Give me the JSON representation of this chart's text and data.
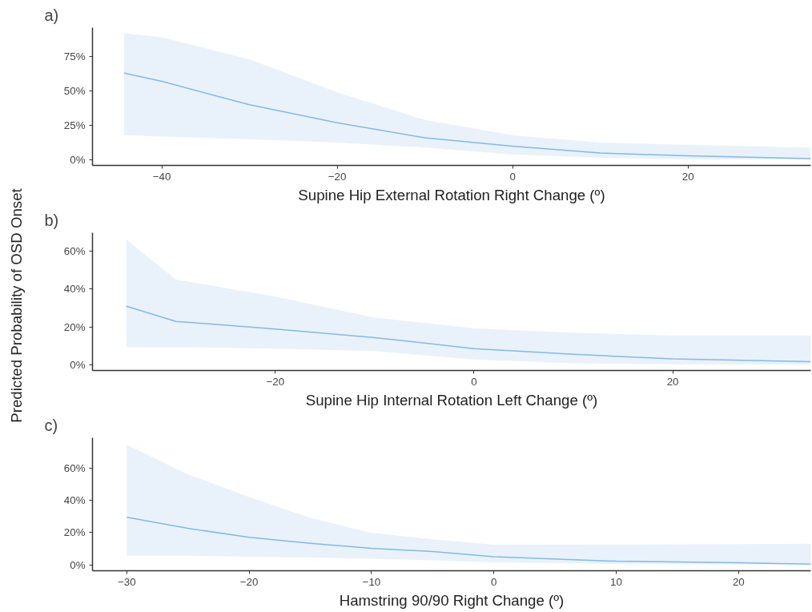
{
  "chart_data": [
    {
      "type": "line",
      "title": "a)",
      "xlabel": "Supine Hip External Rotation Right Change (º)",
      "x": [
        -44.3,
        -40,
        -30,
        -20,
        -10,
        0,
        10,
        20,
        34
      ],
      "series": [
        {
          "color": "#85b8e6",
          "values": [
            63,
            57,
            40,
            27,
            16,
            10,
            5,
            3,
            1
          ],
          "lower": [
            18,
            17,
            15,
            12.6,
            9,
            4,
            1.5,
            0.5,
            0.2
          ],
          "upper": [
            92,
            89,
            73,
            49,
            29,
            18,
            12.6,
            11,
            9
          ]
        }
      ],
      "xlim": [
        -47.9,
        34
      ],
      "xticks": [
        -40,
        -20,
        0,
        20
      ],
      "ylim": [
        -4,
        96
      ],
      "yticks": [
        {
          "value": 0,
          "label": "0%"
        },
        {
          "value": 25,
          "label": "25%"
        },
        {
          "value": 50,
          "label": "50%"
        },
        {
          "value": 75,
          "label": "75%"
        }
      ]
    },
    {
      "type": "line",
      "title": "b)",
      "xlabel": "Supine Hip Internal Rotation Left Change (º)",
      "ylabel": "Predicted Probability of OSD Onset",
      "x": [
        -35,
        -30,
        -20,
        -10,
        0,
        10,
        20,
        33.9
      ],
      "series": [
        {
          "color": "#85b8e6",
          "values": [
            31,
            23,
            19,
            14.5,
            8.7,
            5.7,
            3.3,
            1.8
          ],
          "lower": [
            9.5,
            9.5,
            8.7,
            7.4,
            3,
            1,
            0.5,
            0.2
          ],
          "upper": [
            66,
            45,
            36,
            25,
            19.4,
            17,
            15.6,
            15.6
          ]
        }
      ],
      "xlim": [
        -38.4,
        33.9
      ],
      "xticks": [
        -20,
        0,
        20
      ],
      "ylim": [
        -2.8,
        69.6
      ],
      "yticks": [
        {
          "value": 0,
          "label": "0%"
        },
        {
          "value": 20,
          "label": "20%"
        },
        {
          "value": 40,
          "label": "40%"
        },
        {
          "value": 60,
          "label": "60%"
        }
      ]
    },
    {
      "type": "line",
      "title": "c)",
      "xlabel": "Hamstring 90/90 Right Change (º)",
      "x": [
        -30,
        -25,
        -20,
        -15,
        -10,
        -5,
        0,
        10,
        20,
        25.9
      ],
      "series": [
        {
          "color": "#85b8e6",
          "values": [
            29.4,
            22.6,
            17,
            13.3,
            10.2,
            8.2,
            5,
            2.2,
            1.3,
            0.4
          ],
          "lower": [
            5.6,
            5.6,
            5,
            4.5,
            3.7,
            2.8,
            1.5,
            0.5,
            0.2,
            0.2
          ],
          "upper": [
            74.4,
            56,
            42,
            29,
            19.8,
            15.8,
            12.4,
            12.6,
            12.8,
            13
          ]
        }
      ],
      "xlim": [
        -32.8,
        25.9
      ],
      "xticks": [
        -30,
        -20,
        -10,
        0,
        10,
        20
      ],
      "ylim": [
        -3.7,
        78.7
      ],
      "yticks": [
        {
          "value": 0,
          "label": "0%"
        },
        {
          "value": 20,
          "label": "20%"
        },
        {
          "value": 40,
          "label": "40%"
        },
        {
          "value": 60,
          "label": "60%"
        }
      ]
    }
  ]
}
